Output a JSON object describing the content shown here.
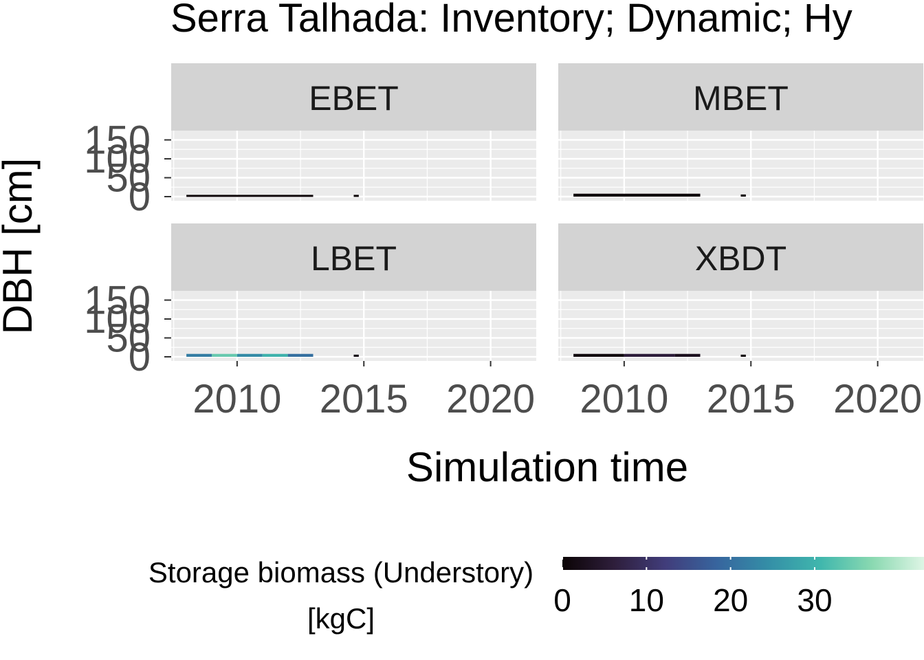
{
  "chart_data": {
    "type": "heatmap",
    "title": "Serra Talhada: Inventory; Dynamic; Hy",
    "xlabel": "Simulation time",
    "ylabel": "DBH [cm]",
    "x_ticks": [
      "2010",
      "2015",
      "2020"
    ],
    "y_ticks": [
      "0",
      "50",
      "100",
      "150"
    ],
    "xlim": [
      2007.4,
      2021.8
    ],
    "ylim": [
      0,
      160
    ],
    "grid": true,
    "panels": [
      {
        "name": "EBET",
        "cells": [
          {
            "x0": 2008.0,
            "x1": 2013.0,
            "y0": 0,
            "y1": 2,
            "value": 0.5
          },
          {
            "x0": 2014.6,
            "x1": 2014.8,
            "y0": 0,
            "y1": 2,
            "value": 0.2
          }
        ]
      },
      {
        "name": "MBET",
        "cells": [
          {
            "x0": 2008.0,
            "x1": 2013.0,
            "y0": 0,
            "y1": 5,
            "value": 0.5
          },
          {
            "x0": 2014.6,
            "x1": 2014.8,
            "y0": 0,
            "y1": 3,
            "value": 0.2
          }
        ]
      },
      {
        "name": "LBET",
        "cells": [
          {
            "x0": 2008.0,
            "x1": 2009.0,
            "y0": 0,
            "y1": 5,
            "value": 22
          },
          {
            "x0": 2009.0,
            "x1": 2010.0,
            "y0": 0,
            "y1": 5,
            "value": 34
          },
          {
            "x0": 2010.0,
            "x1": 2011.0,
            "y0": 0,
            "y1": 5,
            "value": 24
          },
          {
            "x0": 2011.0,
            "x1": 2012.0,
            "y0": 0,
            "y1": 5,
            "value": 30
          },
          {
            "x0": 2012.0,
            "x1": 2013.0,
            "y0": 0,
            "y1": 5,
            "value": 20
          },
          {
            "x0": 2014.6,
            "x1": 2014.8,
            "y0": 0,
            "y1": 3,
            "value": 2
          }
        ]
      },
      {
        "name": "XBDT",
        "cells": [
          {
            "x0": 2008.0,
            "x1": 2010.0,
            "y0": 0,
            "y1": 5,
            "value": 1
          },
          {
            "x0": 2010.0,
            "x1": 2012.0,
            "y0": 0,
            "y1": 5,
            "value": 6
          },
          {
            "x0": 2012.0,
            "x1": 2013.0,
            "y0": 0,
            "y1": 5,
            "value": 3
          },
          {
            "x0": 2014.6,
            "x1": 2014.8,
            "y0": 0,
            "y1": 3,
            "value": 0.5
          }
        ]
      }
    ],
    "legend": {
      "title_line1": "Storage biomass (Understory)",
      "title_line2": "[kgC]",
      "ticks": [
        "0",
        "10",
        "20",
        "30"
      ],
      "tick_values": [
        0,
        10,
        20,
        30
      ],
      "range": [
        0,
        43
      ],
      "colors": [
        "#0b0405",
        "#2e1e3b",
        "#413d7b",
        "#37659e",
        "#348fa7",
        "#40b7ad",
        "#8ad9b1",
        "#def5e5"
      ],
      "placement": "bottom"
    },
    "colors": {
      "strip_bg": "#d3d3d3",
      "panel_bg": "#ebebeb",
      "grid_major": "#ffffff"
    }
  }
}
